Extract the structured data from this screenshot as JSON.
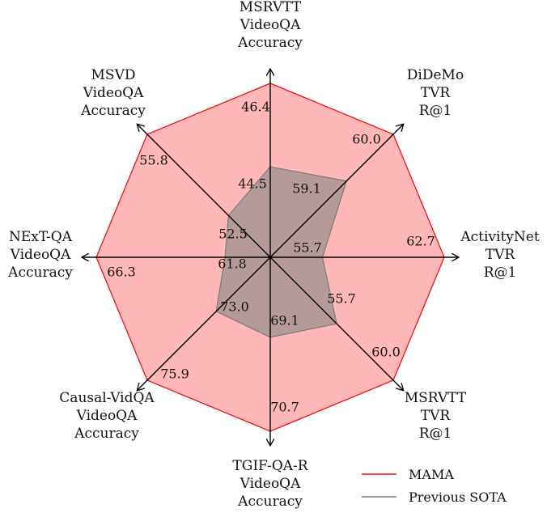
{
  "chart_data": {
    "type": "radar",
    "axes": [
      {
        "label": [
          "MSRVTT",
          "VideoQA",
          "Accuracy"
        ],
        "mama": 46.4,
        "sota": 44.5
      },
      {
        "label": [
          "DiDeMo",
          "TVR",
          "R@1"
        ],
        "mama": 60.0,
        "sota": 59.1
      },
      {
        "label": [
          "ActivityNet",
          "TVR",
          "R@1"
        ],
        "mama": 62.7,
        "sota": 55.7
      },
      {
        "label": [
          "MSRVTT",
          "TVR",
          "R@1"
        ],
        "mama": 60.0,
        "sota": 55.7
      },
      {
        "label": [
          "TGIF-QA-R",
          "VideoQA",
          "Accuracy"
        ],
        "mama": 70.7,
        "sota": 69.1
      },
      {
        "label": [
          "Causal-VidQA",
          "VideoQA",
          "Accuracy"
        ],
        "mama": 75.9,
        "sota": 73.0
      },
      {
        "label": [
          "NExT-QA",
          "VideoQA",
          "Accuracy"
        ],
        "mama": 66.3,
        "sota": 61.8
      },
      {
        "label": [
          "MSVD",
          "VideoQA",
          "Accuracy"
        ],
        "mama": 55.8,
        "sota": 52.5
      }
    ],
    "sota_fraction": [
      0.52,
      0.62,
      0.3,
      0.54,
      0.46,
      0.44,
      0.26,
      0.34
    ],
    "series": [
      {
        "name": "MAMA",
        "color": "#e8161b",
        "fill": "#ffb3b3"
      },
      {
        "name": "Previous SOTA",
        "color": "#7a7a7a",
        "fill": "#a89595"
      }
    ],
    "grid": true,
    "legend_position": "bottom-right"
  }
}
